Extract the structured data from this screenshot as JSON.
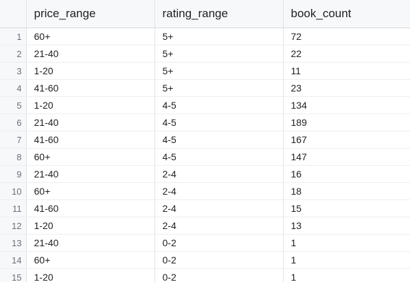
{
  "columns": {
    "price_range": "price_range",
    "rating_range": "rating_range",
    "book_count": "book_count"
  },
  "rows": [
    {
      "index": "1",
      "price_range": "60+",
      "rating_range": "5+",
      "book_count": "72"
    },
    {
      "index": "2",
      "price_range": "21-40",
      "rating_range": "5+",
      "book_count": "22"
    },
    {
      "index": "3",
      "price_range": "1-20",
      "rating_range": "5+",
      "book_count": "11"
    },
    {
      "index": "4",
      "price_range": "41-60",
      "rating_range": "5+",
      "book_count": "23"
    },
    {
      "index": "5",
      "price_range": "1-20",
      "rating_range": "4-5",
      "book_count": "134"
    },
    {
      "index": "6",
      "price_range": "21-40",
      "rating_range": "4-5",
      "book_count": "189"
    },
    {
      "index": "7",
      "price_range": "41-60",
      "rating_range": "4-5",
      "book_count": "167"
    },
    {
      "index": "8",
      "price_range": "60+",
      "rating_range": "4-5",
      "book_count": "147"
    },
    {
      "index": "9",
      "price_range": "21-40",
      "rating_range": "2-4",
      "book_count": "16"
    },
    {
      "index": "10",
      "price_range": "60+",
      "rating_range": "2-4",
      "book_count": "18"
    },
    {
      "index": "11",
      "price_range": "41-60",
      "rating_range": "2-4",
      "book_count": "15"
    },
    {
      "index": "12",
      "price_range": "1-20",
      "rating_range": "2-4",
      "book_count": "13"
    },
    {
      "index": "13",
      "price_range": "21-40",
      "rating_range": "0-2",
      "book_count": "1"
    },
    {
      "index": "14",
      "price_range": "60+",
      "rating_range": "0-2",
      "book_count": "1"
    },
    {
      "index": "15",
      "price_range": "1-20",
      "rating_range": "0-2",
      "book_count": "1"
    }
  ]
}
